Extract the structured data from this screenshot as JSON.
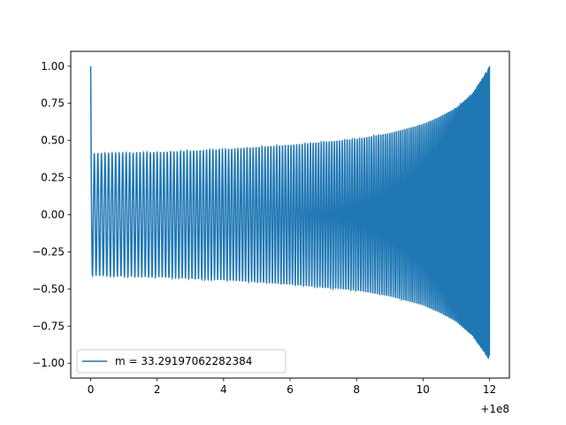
{
  "chart_data": {
    "type": "line",
    "title": "",
    "xlabel": "",
    "ylabel": "",
    "x_offset_label": "+1e8",
    "xlim": [
      -0.6,
      12.6
    ],
    "ylim": [
      -1.1,
      1.1
    ],
    "x_ticks": [
      0,
      2,
      4,
      6,
      8,
      10,
      12
    ],
    "x_tick_labels": [
      "0",
      "2",
      "4",
      "6",
      "8",
      "10",
      "12"
    ],
    "y_ticks": [
      1.0,
      0.75,
      0.5,
      0.25,
      0.0,
      -0.25,
      -0.5,
      -0.75,
      -1.0
    ],
    "y_tick_labels": [
      "1.00",
      "0.75",
      "0.50",
      "0.25",
      "0.00",
      "−0.25",
      "−0.50",
      "−0.75",
      "−1.00"
    ],
    "grid": false,
    "legend_position": "lower-left",
    "series": [
      {
        "name": "m = 33.29197062282384",
        "color": "#1f77b4",
        "x_start": 0,
        "x_end": 12,
        "start_value": 1.0,
        "end_value": 1.0,
        "envelope": {
          "x": [
            0.1,
            2,
            4,
            6,
            8,
            9,
            10,
            10.5,
            11,
            11.5,
            12
          ],
          "upper": [
            0.41,
            0.42,
            0.44,
            0.47,
            0.51,
            0.55,
            0.61,
            0.66,
            0.72,
            0.82,
            1.0
          ],
          "lower": [
            -0.41,
            -0.42,
            -0.44,
            -0.47,
            -0.51,
            -0.55,
            -0.61,
            -0.66,
            -0.72,
            -0.82,
            -0.98
          ]
        },
        "oscillation_count": 170
      }
    ]
  }
}
